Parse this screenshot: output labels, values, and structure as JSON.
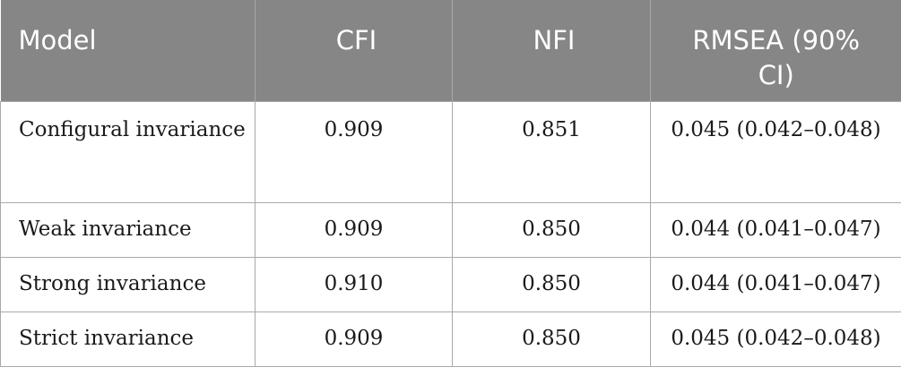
{
  "table": {
    "headers": [
      "Model",
      "CFI",
      "NFI",
      "RMSEA (90% CI)"
    ],
    "rows": [
      {
        "model": "Configural invariance",
        "cfi": "0.909",
        "nfi": "0.851",
        "rmsea": "0.045 (0.042–0.048)"
      },
      {
        "model": "Weak invariance",
        "cfi": "0.909",
        "nfi": "0.850",
        "rmsea": "0.044 (0.041–0.047)"
      },
      {
        "model": "Strong invariance",
        "cfi": "0.910",
        "nfi": "0.850",
        "rmsea": "0.044 (0.041–0.047)"
      },
      {
        "model": "Strict invariance",
        "cfi": "0.909",
        "nfi": "0.850",
        "rmsea": "0.045 (0.042–0.048)"
      }
    ]
  },
  "colors": {
    "header_background": "#858685",
    "header_text": "#ffffff",
    "border": "#a9a9a9"
  }
}
